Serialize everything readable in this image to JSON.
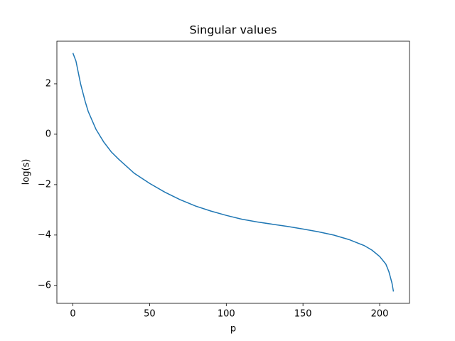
{
  "chart_data": {
    "type": "line",
    "title": "Singular values",
    "x_label": "p",
    "y_label": "log(s)",
    "x": [
      0,
      2,
      5,
      8,
      10,
      15,
      20,
      25,
      30,
      40,
      50,
      60,
      70,
      80,
      90,
      100,
      110,
      120,
      130,
      140,
      150,
      160,
      170,
      180,
      190,
      195,
      200,
      204,
      206,
      208,
      209
    ],
    "series": [
      {
        "color": "#1f77b4",
        "values": [
          3.22,
          2.9,
          2.0,
          1.3,
          0.9,
          0.2,
          -0.3,
          -0.7,
          -1.0,
          -1.55,
          -1.95,
          -2.3,
          -2.6,
          -2.85,
          -3.05,
          -3.22,
          -3.37,
          -3.48,
          -3.57,
          -3.66,
          -3.76,
          -3.87,
          -4.0,
          -4.18,
          -4.42,
          -4.6,
          -4.85,
          -5.15,
          -5.45,
          -5.9,
          -6.24
        ]
      }
    ],
    "xlim": [
      -10.45,
      219.45
    ],
    "ylim": [
      -6.71,
      3.69
    ],
    "xticks": [
      0,
      50,
      100,
      150,
      200
    ],
    "yticks": [
      {
        "value": -6,
        "label": "−6"
      },
      {
        "value": -4,
        "label": "−4"
      },
      {
        "value": -2,
        "label": "−2"
      },
      0,
      2
    ],
    "grid": false
  }
}
